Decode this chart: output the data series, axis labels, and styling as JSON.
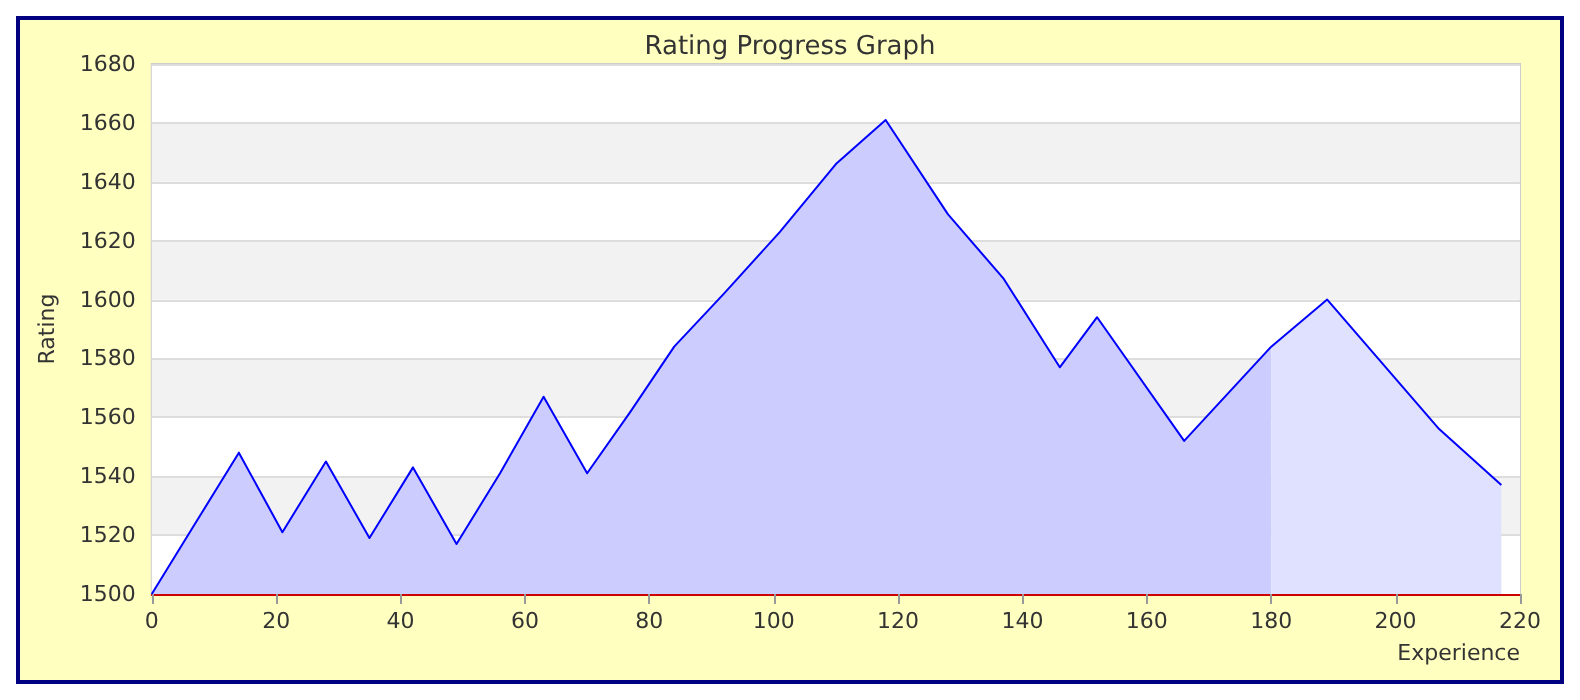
{
  "chart_data": {
    "type": "area",
    "title": "Rating Progress Graph",
    "xlabel": "Experience",
    "ylabel": "Rating",
    "xlim": [
      0,
      220
    ],
    "xticks": [
      0,
      20,
      40,
      60,
      80,
      100,
      120,
      140,
      160,
      180,
      200,
      220
    ],
    "ylim": [
      1500,
      1680
    ],
    "yticks": [
      1500,
      1520,
      1540,
      1560,
      1580,
      1600,
      1620,
      1640,
      1660,
      1680
    ],
    "grid": "y",
    "marker": "none",
    "series": [
      {
        "color": "#ccccff",
        "x": [
          0,
          7,
          14,
          21,
          28,
          35,
          42,
          49,
          56,
          63,
          70,
          77,
          84,
          92,
          101,
          110,
          118,
          128,
          137,
          146,
          152,
          166,
          180
        ],
        "values": [
          1500,
          1524,
          1548,
          1521,
          1545,
          1519,
          1543,
          1517,
          1541,
          1567,
          1541,
          1562,
          1584,
          1602,
          1623,
          1646,
          1661,
          1629,
          1607,
          1577,
          1594,
          1552,
          1584
        ]
      },
      {
        "color": "#e0e0ff",
        "x": [
          180,
          189,
          207,
          217
        ],
        "values": [
          1584,
          1600,
          1556,
          1537
        ]
      },
      {
        "type": "line",
        "color": "#0000ff",
        "x": [
          0,
          7,
          14,
          21,
          28,
          35,
          42,
          49,
          56,
          63,
          70,
          77,
          84,
          92,
          101,
          110,
          118,
          128,
          137,
          146,
          152,
          166,
          180,
          189,
          207,
          217
        ],
        "values": [
          1500,
          1524,
          1548,
          1521,
          1545,
          1519,
          1543,
          1517,
          1541,
          1567,
          1541,
          1562,
          1584,
          1602,
          1623,
          1646,
          1661,
          1629,
          1607,
          1577,
          1594,
          1552,
          1584,
          1600,
          1556,
          1537
        ]
      }
    ]
  }
}
